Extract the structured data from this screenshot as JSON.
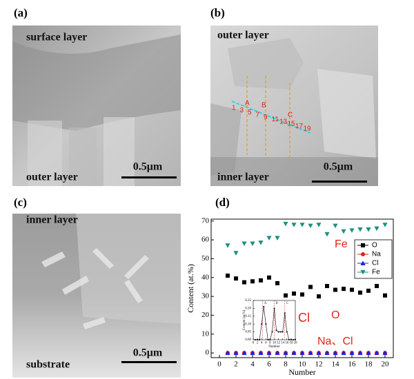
{
  "panels": {
    "a": {
      "label": "(a)",
      "top": "surface layer",
      "bottom": "outer layer",
      "scale": "0.5μm"
    },
    "b": {
      "label": "(b)",
      "top": "outer layer",
      "bottom": "inner layer",
      "scale": "0.5μm",
      "points": [
        "1",
        "3",
        "5",
        "7",
        "9",
        "11",
        "13",
        "15",
        "17",
        "19"
      ],
      "lines": [
        "A",
        "B",
        "C"
      ]
    },
    "c": {
      "label": "(c)",
      "top": "inner layer",
      "bottom": "substrate",
      "scale": "0.5μm"
    },
    "d": {
      "label": "(d)"
    }
  },
  "chart_data": [
    {
      "type": "line",
      "xlabel": "Number",
      "ylabel": "Content (at.%)",
      "x": [
        1,
        2,
        3,
        4,
        5,
        6,
        7,
        8,
        9,
        10,
        11,
        12,
        13,
        14,
        15,
        16,
        17,
        18,
        19,
        20
      ],
      "xlim": [
        -1,
        21
      ],
      "xticks": [
        0,
        2,
        4,
        6,
        8,
        10,
        12,
        14,
        16,
        18,
        20
      ],
      "ylim": [
        -2.5,
        71
      ],
      "yticks": [
        0,
        10,
        20,
        30,
        40,
        50,
        60,
        70
      ],
      "legend": "upper right",
      "series": [
        {
          "name": "O",
          "color": "#000000",
          "marker": "square",
          "values": [
            41,
            39.5,
            37.5,
            38,
            38.5,
            40,
            37,
            30.5,
            31.5,
            31,
            35,
            30,
            35.5,
            33.5,
            34,
            33.5,
            32,
            33,
            35.5,
            30.5
          ]
        },
        {
          "name": "Na",
          "color": "#e0201b",
          "marker": "circle",
          "values": [
            0,
            0,
            0,
            0,
            0,
            0,
            0,
            0,
            0,
            0,
            0,
            0,
            0,
            0,
            0,
            0,
            0,
            0,
            0,
            0
          ]
        },
        {
          "name": "Cl",
          "color": "#1f1fe0",
          "marker": "triangle-up",
          "values": [
            0,
            0,
            0,
            0,
            0,
            0,
            0,
            0,
            0,
            0,
            0,
            0,
            0,
            0,
            0,
            0,
            0,
            0,
            0,
            0
          ]
        },
        {
          "name": "Fe",
          "color": "#1f8f80",
          "marker": "triangle-down",
          "values": [
            57,
            53,
            58,
            58,
            58.5,
            61,
            61,
            68.5,
            68,
            68,
            67.5,
            68,
            63,
            67.5,
            64.5,
            65,
            65.5,
            65.5,
            66,
            68
          ]
        }
      ],
      "annotations": [
        "Fe",
        "O",
        "Cl",
        "Na、Cl"
      ]
    },
    {
      "type": "line",
      "xlabel": "Number",
      "ylabel": "Content (at.%)",
      "x": [
        1,
        2,
        3,
        4,
        5,
        6,
        7,
        8,
        9,
        10,
        11,
        12,
        13,
        14,
        15,
        16,
        17,
        18,
        19,
        20
      ],
      "xlim": [
        0,
        20
      ],
      "xticks": [
        0,
        2,
        4,
        6,
        8,
        10,
        12,
        14,
        16,
        18,
        20
      ],
      "ylim": [
        0,
        0.25
      ],
      "yticks": [
        {
          "value": 0,
          "label": "0.00"
        },
        {
          "value": 0.05,
          "label": "0.05"
        },
        {
          "value": 0.1,
          "label": "0.10"
        },
        {
          "value": 0.15,
          "label": "0.15"
        },
        {
          "value": 0.2,
          "label": "0.20"
        },
        {
          "value": 0.25,
          "label": "0.25"
        }
      ],
      "series": [
        {
          "color": "#000000",
          "marker": "square",
          "values": [
            0,
            0,
            0,
            0.1,
            0.21,
            0.1,
            0,
            0,
            0.05,
            0.2,
            0.06,
            0.05,
            0.05,
            0.05,
            0.17,
            0.05,
            0,
            0,
            0,
            0
          ]
        }
      ],
      "vlines": [
        {
          "x": 4.5,
          "label": "A"
        },
        {
          "x": 10,
          "label": "B"
        },
        {
          "x": 15,
          "label": "C"
        }
      ]
    }
  ]
}
